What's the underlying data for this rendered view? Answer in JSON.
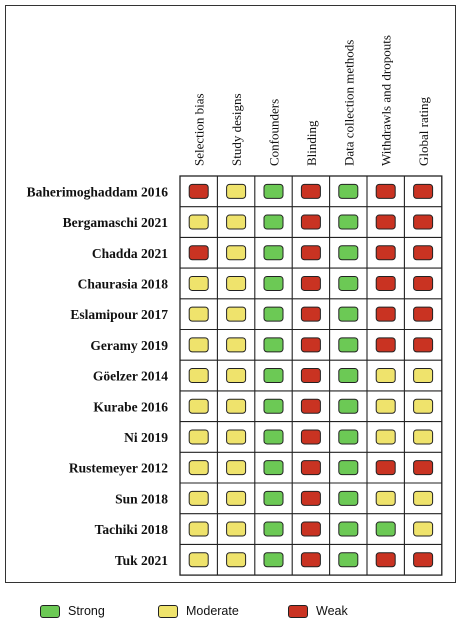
{
  "colors": {
    "Strong": "#6cc955",
    "Moderate": "#efe36c",
    "Weak": "#c93322"
  },
  "chart_data": {
    "type": "table",
    "title": "",
    "columns": [
      "Selection bias",
      "Study designs",
      "Confounders",
      "Blinding",
      "Data collection methods",
      "Withdrawls and dropouts",
      "Global rating"
    ],
    "rows": [
      {
        "study": "Baherimoghaddam 2016",
        "ratings": [
          "Weak",
          "Moderate",
          "Strong",
          "Weak",
          "Strong",
          "Weak",
          "Weak"
        ]
      },
      {
        "study": "Bergamaschi 2021",
        "ratings": [
          "Moderate",
          "Moderate",
          "Strong",
          "Weak",
          "Strong",
          "Weak",
          "Weak"
        ]
      },
      {
        "study": "Chadda 2021",
        "ratings": [
          "Weak",
          "Moderate",
          "Strong",
          "Weak",
          "Strong",
          "Weak",
          "Weak"
        ]
      },
      {
        "study": "Chaurasia 2018",
        "ratings": [
          "Moderate",
          "Moderate",
          "Strong",
          "Weak",
          "Strong",
          "Weak",
          "Weak"
        ]
      },
      {
        "study": "Eslamipour 2017",
        "ratings": [
          "Moderate",
          "Moderate",
          "Strong",
          "Weak",
          "Strong",
          "Weak",
          "Weak"
        ]
      },
      {
        "study": "Geramy 2019",
        "ratings": [
          "Moderate",
          "Moderate",
          "Strong",
          "Weak",
          "Strong",
          "Weak",
          "Weak"
        ]
      },
      {
        "study": "Göelzer 2014",
        "ratings": [
          "Moderate",
          "Moderate",
          "Strong",
          "Weak",
          "Strong",
          "Moderate",
          "Moderate"
        ]
      },
      {
        "study": "Kurabe 2016",
        "ratings": [
          "Moderate",
          "Moderate",
          "Strong",
          "Weak",
          "Strong",
          "Moderate",
          "Moderate"
        ]
      },
      {
        "study": "Ni 2019",
        "ratings": [
          "Moderate",
          "Moderate",
          "Strong",
          "Weak",
          "Strong",
          "Moderate",
          "Moderate"
        ]
      },
      {
        "study": "Rustemeyer 2012",
        "ratings": [
          "Moderate",
          "Moderate",
          "Strong",
          "Weak",
          "Strong",
          "Weak",
          "Weak"
        ]
      },
      {
        "study": "Sun 2018",
        "ratings": [
          "Moderate",
          "Moderate",
          "Strong",
          "Weak",
          "Strong",
          "Moderate",
          "Moderate"
        ]
      },
      {
        "study": "Tachiki 2018",
        "ratings": [
          "Moderate",
          "Moderate",
          "Strong",
          "Weak",
          "Strong",
          "Strong",
          "Moderate"
        ]
      },
      {
        "study": "Tuk 2021",
        "ratings": [
          "Moderate",
          "Moderate",
          "Strong",
          "Weak",
          "Strong",
          "Weak",
          "Weak"
        ]
      }
    ],
    "legend": [
      "Strong",
      "Moderate",
      "Weak"
    ],
    "legend_position": "bottom"
  }
}
